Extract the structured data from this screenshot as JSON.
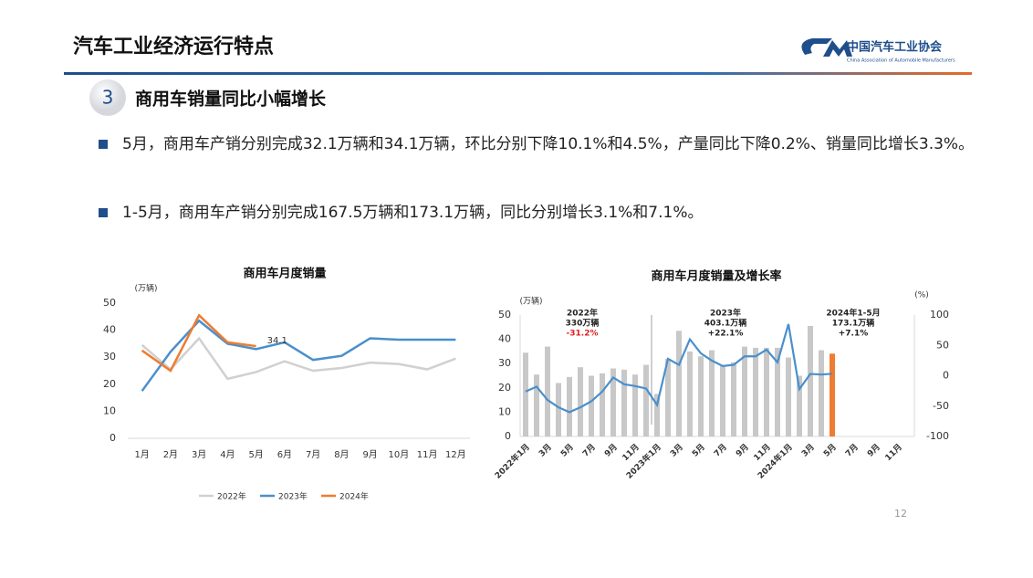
{
  "header": {
    "title": "汽车工业经济运行特点",
    "logo_text": "中国汽车工业协会",
    "logo_subtext": "China Association of Automobile Manufacturers"
  },
  "section": {
    "number": "3",
    "title": "商用车销量同比小幅增长"
  },
  "bullets": [
    "5月，商用车产销分别完成32.1万辆和34.1万辆，环比分别下降10.1%和4.5%，产量同比下降0.2%、销量同比增长3.3%。",
    "1-5月，商用车产销分别完成167.5万辆和173.1万辆，同比分别增长3.1%和7.1%。"
  ],
  "page_number": "12",
  "chart_data": [
    {
      "type": "line",
      "title": "商用车月度销量",
      "y_label": "(万辆)",
      "categories": [
        "1月",
        "2月",
        "3月",
        "4月",
        "5月",
        "6月",
        "7月",
        "8月",
        "9月",
        "10月",
        "11月",
        "12月"
      ],
      "series": [
        {
          "name": "2022年",
          "color": "#d0d0d0",
          "values": [
            34.5,
            25.5,
            37,
            22,
            24.5,
            28.5,
            25,
            26,
            28,
            27.5,
            25.5,
            29.5
          ]
        },
        {
          "name": "2023年",
          "color": "#4a8fcc",
          "values": [
            17.5,
            32,
            43.5,
            35,
            33,
            35.5,
            29,
            30.5,
            37,
            36.5,
            36.5,
            36.5
          ]
        },
        {
          "name": "2024年",
          "color": "#ed7d31",
          "values": [
            32.5,
            25,
            45.5,
            35.5,
            34.1,
            null,
            null,
            null,
            null,
            null,
            null,
            null
          ]
        }
      ],
      "annotations": [
        {
          "text": "34.1"
        }
      ],
      "ylim": [
        0,
        50
      ],
      "yticks": [
        0,
        10,
        20,
        30,
        40,
        50
      ],
      "grid": false,
      "legend": "bottom"
    },
    {
      "type": "combo",
      "title": "商用车月度销量及增长率",
      "y_label": "(万辆)",
      "y2_label": "(%)",
      "categories": [
        "2022年1月",
        null,
        "3月",
        null,
        "5月",
        null,
        "7月",
        null,
        "9月",
        null,
        "11月",
        null,
        "2023年1月",
        null,
        "3月",
        null,
        "5月",
        null,
        "7月",
        null,
        "9月",
        null,
        "11月",
        null,
        "2024年1月",
        null,
        "3月",
        null,
        "5月",
        null,
        "7月",
        null,
        "9月",
        null,
        "11月",
        null
      ],
      "series": [
        {
          "kind": "bar",
          "color": "#c8c8c8",
          "values": [
            34.5,
            25.5,
            37,
            22,
            24.5,
            28.5,
            25,
            26,
            28,
            27.5,
            25.5,
            29.5,
            17.5,
            32,
            43.5,
            35,
            33,
            35.5,
            29,
            30.5,
            37,
            36.5,
            36.5,
            36.5,
            32.5,
            25,
            45.5,
            35.5,
            null,
            null,
            null,
            null,
            null,
            null,
            null,
            null
          ]
        },
        {
          "kind": "bar",
          "color": "#ed7d31",
          "values": [
            null,
            null,
            null,
            null,
            null,
            null,
            null,
            null,
            null,
            null,
            null,
            null,
            null,
            null,
            null,
            null,
            null,
            null,
            null,
            null,
            null,
            null,
            null,
            null,
            null,
            null,
            null,
            null,
            34.1,
            null,
            null,
            null,
            null,
            null,
            null,
            null
          ]
        },
        {
          "kind": "line",
          "axis": "y2",
          "color": "#4a8fcc",
          "values": [
            -26,
            -18,
            -40,
            -52,
            -60,
            -52,
            -42,
            -26,
            -3,
            -14,
            -17,
            -21,
            -48,
            28,
            18,
            60,
            37,
            25,
            16,
            18,
            32,
            32,
            43,
            22,
            85,
            -22,
            3,
            2,
            3.3,
            null,
            null,
            null,
            null,
            null,
            null,
            null
          ]
        }
      ],
      "annotations": [
        {
          "lines": [
            "2022年",
            "330万辆",
            "-31.2%"
          ],
          "rate_color": "#e02020"
        },
        {
          "lines": [
            "2023年",
            "403.1万辆",
            "+22.1%"
          ],
          "rate_color": "#222222"
        },
        {
          "lines": [
            "2024年1-5月",
            "173.1万辆",
            "+7.1%"
          ],
          "rate_color": "#222222"
        }
      ],
      "ylim": [
        0,
        50
      ],
      "yticks": [
        0,
        10,
        20,
        30,
        40,
        50
      ],
      "y2lim": [
        -100,
        100
      ],
      "y2ticks": [
        -100,
        -50,
        0,
        50,
        100
      ],
      "grid": false
    }
  ]
}
